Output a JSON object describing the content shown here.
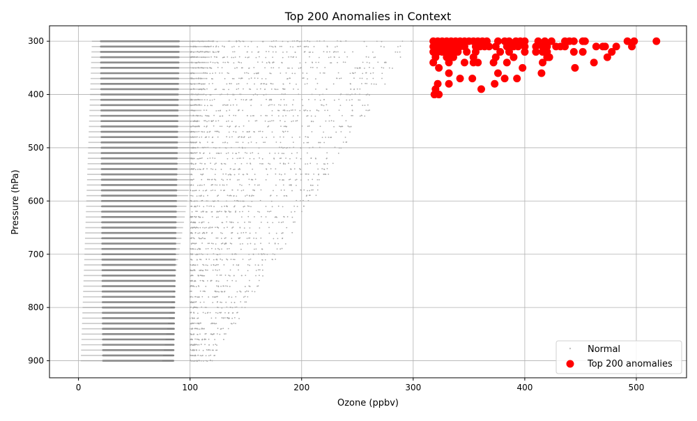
{
  "chart_data": {
    "type": "scatter",
    "title": "Top 200 Anomalies in Context",
    "xlabel": "Ozone (ppbv)",
    "ylabel": "Pressure (hPa)",
    "xlim": [
      -26,
      545
    ],
    "ylim": [
      932,
      271
    ],
    "y_inverted": true,
    "grid": true,
    "legend_position": "lower-right",
    "x_ticks": [
      "0",
      "100",
      "200",
      "300",
      "400",
      "500"
    ],
    "y_ticks": [
      "300",
      "400",
      "500",
      "600",
      "700",
      "800",
      "900"
    ],
    "colors": {
      "normal": "#808080",
      "anomaly": "#ff0000"
    },
    "normal_bands": {
      "pressure_levels_hPa": [
        300,
        310,
        320,
        330,
        340,
        350,
        360,
        370,
        380,
        390,
        400,
        410,
        420,
        430,
        440,
        450,
        460,
        470,
        480,
        490,
        500,
        510,
        520,
        530,
        540,
        550,
        560,
        570,
        580,
        590,
        600,
        610,
        620,
        630,
        640,
        650,
        660,
        670,
        680,
        690,
        700,
        710,
        720,
        730,
        740,
        750,
        760,
        770,
        780,
        790,
        800,
        810,
        820,
        830,
        840,
        850,
        860,
        870,
        880,
        890,
        900
      ],
      "dense_ozone_range": [
        20,
        90
      ],
      "sparse_ozone_range": [
        0,
        300
      ]
    },
    "series": [
      {
        "name": "Normal",
        "marker": "small dot"
      },
      {
        "name": "Top 200 anomalies",
        "marker": "circle",
        "points": [
          [
            318,
            300
          ],
          [
            322,
            300
          ],
          [
            326,
            300
          ],
          [
            330,
            300
          ],
          [
            334,
            300
          ],
          [
            338,
            300
          ],
          [
            342,
            300
          ],
          [
            346,
            300
          ],
          [
            350,
            300
          ],
          [
            354,
            300
          ],
          [
            358,
            300
          ],
          [
            362,
            300
          ],
          [
            366,
            300
          ],
          [
            376,
            300
          ],
          [
            382,
            300
          ],
          [
            386,
            300
          ],
          [
            392,
            300
          ],
          [
            396,
            300
          ],
          [
            400,
            300
          ],
          [
            412,
            300
          ],
          [
            418,
            300
          ],
          [
            424,
            300
          ],
          [
            436,
            300
          ],
          [
            440,
            300
          ],
          [
            444,
            300
          ],
          [
            452,
            300
          ],
          [
            454,
            300
          ],
          [
            492,
            300
          ],
          [
            498,
            300
          ],
          [
            518,
            300
          ],
          [
            318,
            310
          ],
          [
            322,
            310
          ],
          [
            326,
            310
          ],
          [
            330,
            310
          ],
          [
            334,
            310
          ],
          [
            338,
            310
          ],
          [
            342,
            310
          ],
          [
            346,
            310
          ],
          [
            356,
            310
          ],
          [
            360,
            310
          ],
          [
            364,
            310
          ],
          [
            368,
            310
          ],
          [
            374,
            310
          ],
          [
            384,
            310
          ],
          [
            390,
            310
          ],
          [
            394,
            310
          ],
          [
            400,
            310
          ],
          [
            410,
            310
          ],
          [
            416,
            310
          ],
          [
            420,
            310
          ],
          [
            428,
            310
          ],
          [
            432,
            310
          ],
          [
            436,
            310
          ],
          [
            464,
            310
          ],
          [
            470,
            310
          ],
          [
            472,
            310
          ],
          [
            482,
            310
          ],
          [
            496,
            310
          ],
          [
            318,
            320
          ],
          [
            322,
            320
          ],
          [
            326,
            320
          ],
          [
            330,
            320
          ],
          [
            334,
            320
          ],
          [
            340,
            320
          ],
          [
            348,
            320
          ],
          [
            356,
            320
          ],
          [
            378,
            320
          ],
          [
            386,
            320
          ],
          [
            400,
            320
          ],
          [
            410,
            320
          ],
          [
            416,
            320
          ],
          [
            420,
            320
          ],
          [
            444,
            320
          ],
          [
            452,
            320
          ],
          [
            478,
            320
          ],
          [
            320,
            330
          ],
          [
            330,
            330
          ],
          [
            336,
            330
          ],
          [
            354,
            330
          ],
          [
            374,
            330
          ],
          [
            390,
            330
          ],
          [
            420,
            330
          ],
          [
            422,
            330
          ],
          [
            474,
            330
          ],
          [
            318,
            340
          ],
          [
            332,
            340
          ],
          [
            346,
            340
          ],
          [
            354,
            340
          ],
          [
            358,
            340
          ],
          [
            372,
            340
          ],
          [
            384,
            340
          ],
          [
            416,
            340
          ],
          [
            462,
            340
          ],
          [
            323,
            350
          ],
          [
            398,
            350
          ],
          [
            445,
            350
          ],
          [
            332,
            360
          ],
          [
            376,
            360
          ],
          [
            415,
            360
          ],
          [
            342,
            370
          ],
          [
            353,
            370
          ],
          [
            382,
            370
          ],
          [
            393,
            370
          ],
          [
            322,
            380
          ],
          [
            332,
            380
          ],
          [
            373,
            380
          ],
          [
            320,
            390
          ],
          [
            361,
            390
          ],
          [
            319,
            400
          ],
          [
            323,
            400
          ]
        ]
      }
    ]
  }
}
